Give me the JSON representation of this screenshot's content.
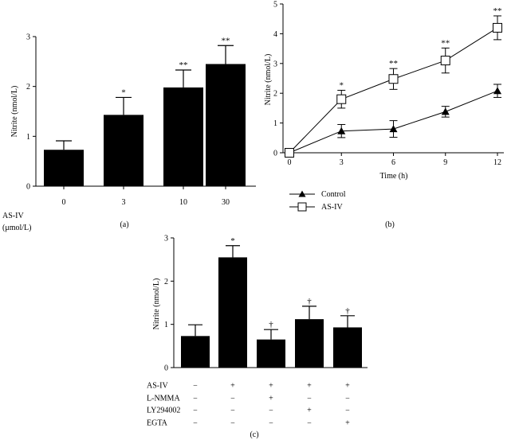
{
  "chart_data": [
    {
      "type": "bar",
      "panel_label": "(a)",
      "ylabel": "Nitrite (nmol/L)",
      "xlabel_lines": [
        "AS-IV",
        "(μmol/L)"
      ],
      "categories": [
        "0",
        "3",
        "10",
        "30"
      ],
      "values": [
        0.73,
        1.43,
        1.98,
        2.45
      ],
      "errors": [
        0.18,
        0.35,
        0.35,
        0.37
      ],
      "annotations": [
        "",
        "*",
        "**",
        "**"
      ],
      "ylim": [
        0,
        3
      ],
      "yticks": [
        "0",
        "1",
        "2",
        "3"
      ],
      "bar_color": "#000000"
    },
    {
      "type": "line",
      "panel_label": "(b)",
      "ylabel": "Nitrite (nmol/L)",
      "xlabel": "Time (h)",
      "x": [
        0,
        3,
        6,
        9,
        12
      ],
      "xticks": [
        "0",
        "3",
        "6",
        "9",
        "12"
      ],
      "ylim": [
        0,
        5
      ],
      "yticks": [
        "0",
        "1",
        "2",
        "3",
        "4",
        "5"
      ],
      "series": [
        {
          "name": "Control",
          "marker": "filled-triangle",
          "values": [
            0,
            0.73,
            0.8,
            1.38,
            2.08
          ],
          "errors": [
            0.05,
            0.22,
            0.28,
            0.18,
            0.22
          ],
          "annotations": [
            "",
            "",
            "",
            "",
            ""
          ]
        },
        {
          "name": "AS-IV",
          "marker": "open-square",
          "values": [
            0,
            1.8,
            2.48,
            3.1,
            4.2
          ],
          "errors": [
            0.05,
            0.3,
            0.35,
            0.42,
            0.4
          ],
          "annotations": [
            "",
            "*",
            "**",
            "**",
            "**"
          ]
        }
      ],
      "legend_position": "bottom-left"
    },
    {
      "type": "bar",
      "panel_label": "(c)",
      "ylabel": "Nitrite (nmol/L)",
      "values": [
        0.73,
        2.55,
        0.65,
        1.12,
        0.93
      ],
      "errors": [
        0.26,
        0.27,
        0.23,
        0.3,
        0.27
      ],
      "annotations": [
        "",
        "*",
        "†",
        "†",
        "†"
      ],
      "ylim": [
        0,
        3
      ],
      "yticks": [
        "0",
        "1",
        "2",
        "3"
      ],
      "treatment_rows": [
        {
          "label": "AS-IV",
          "marks": [
            "−",
            "+",
            "+",
            "+",
            "+"
          ]
        },
        {
          "label": "L-NMMA",
          "marks": [
            "−",
            "−",
            "+",
            "−",
            "−"
          ]
        },
        {
          "label": "LY294002",
          "marks": [
            "−",
            "−",
            "−",
            "+",
            "−"
          ]
        },
        {
          "label": "EGTA",
          "marks": [
            "−",
            "−",
            "−",
            "−",
            "+"
          ]
        }
      ],
      "bar_color": "#000000"
    }
  ]
}
